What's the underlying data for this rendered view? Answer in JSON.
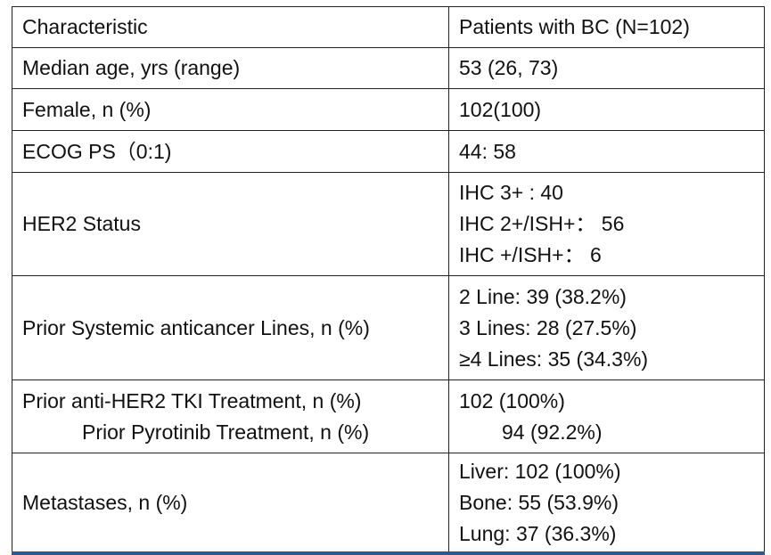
{
  "table": {
    "header": [
      "Characteristic",
      "Patients with BC (N=102)"
    ],
    "rows": [
      [
        [
          "Median age, yrs (range)"
        ],
        [
          "53 (26, 73)"
        ]
      ],
      [
        [
          "Female, n (%)"
        ],
        [
          "102(100)"
        ]
      ],
      [
        [
          "ECOG PS（0:1)"
        ],
        [
          "44: 58"
        ]
      ],
      [
        [
          "HER2 Status"
        ],
        [
          "IHC 3+ : 40",
          "IHC 2+/ISH+： 56",
          "IHC +/ISH+： 6"
        ]
      ],
      [
        [
          "Prior Systemic anticancer Lines, n (%)"
        ],
        [
          "2 Line: 39 (38.2%)",
          "3 Lines: 28 (27.5%)",
          "≥4  Lines: 35 (34.3%)"
        ]
      ],
      [
        [
          "Prior anti-HER2 TKI Treatment, n (%)",
          "Prior Pyrotinib Treatment, n (%)"
        ],
        [
          "102 (100%)",
          "94 (92.2%)"
        ]
      ],
      [
        [
          "Metastases, n (%)"
        ],
        [
          "Liver: 102 (100%)",
          "Bone: 55 (53.9%)",
          "Lung: 37 (36.3%)"
        ]
      ]
    ]
  }
}
